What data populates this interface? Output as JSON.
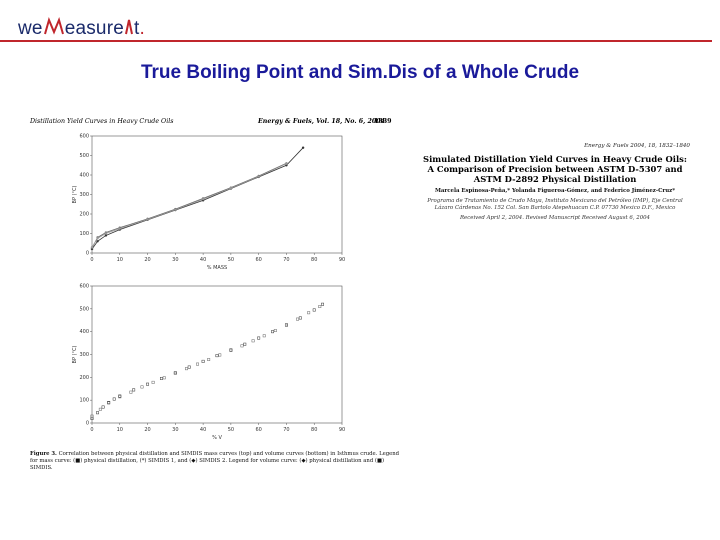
{
  "header": {
    "logo_text": "we Measure It",
    "logo_parts": [
      "we",
      "easure",
      "t"
    ],
    "accent_color": "#c0262c",
    "title_color": "#1a1a9a",
    "title": "True Boiling Point and Sim.Dis of a Whole Crude"
  },
  "paper": {
    "left_running_head": "Distillation Yield Curves in Heavy Crude Oils",
    "right_running_head": "Energy & Fuels, Vol. 18, No. 6, 2004",
    "page_number": "1839",
    "citation": "Energy & Fuels 2004, 18, 1832–1840",
    "article_title": "Simulated Distillation Yield Curves in Heavy Crude Oils: A Comparison of Precision between ASTM D-5307 and ASTM D-2892 Physical Distillation",
    "authors": "Marcela Espinosa-Peña,* Yolanda Figueroa-Gómez, and Federico Jiménez-Cruz*",
    "affiliation": "Programa de Tratamiento de Crudo Maya, Instituto Mexicano del Petróleo (IMP), Eje Central Lázaro Cárdenas No. 152 Col. San Bartolo Atepehuacan C.P. 07730 Mexico D.F., Mexico",
    "received": "Received April 2, 2004. Revised Manuscript Received August 6, 2004",
    "caption_label": "Figure 3.",
    "caption_text": "Correlation between physical distillation and SIMDIS mass curves (top) and volume curves (bottom) in Isthmus crude. Legend for mass curve: (■) physical distillation, (*) SIMDIS 1, and (◆) SIMDIS 2. Legend for volume curve: (◆) physical distillation and (■) SIMDIS."
  },
  "chart_data": [
    {
      "type": "line",
      "title": "",
      "xlabel": "% MASS",
      "ylabel": "BP (°C)",
      "xlim": [
        0,
        90
      ],
      "ylim": [
        0,
        600
      ],
      "x_ticks": [
        "0",
        "10",
        "20",
        "30",
        "40",
        "50",
        "60",
        "70",
        "80",
        "90"
      ],
      "y_ticks": [
        "0",
        "100",
        "200",
        "300",
        "400",
        "500",
        "600"
      ],
      "grid": false,
      "series": [
        {
          "name": "",
          "x": [
            0,
            2,
            5,
            10,
            20,
            30,
            40,
            50,
            60,
            70,
            76
          ],
          "y": [
            20,
            60,
            90,
            120,
            170,
            220,
            270,
            330,
            390,
            450,
            540
          ]
        },
        {
          "name": "",
          "x": [
            0,
            2,
            5,
            10,
            20,
            30,
            40,
            50,
            60,
            70
          ],
          "y": [
            25,
            80,
            105,
            130,
            175,
            225,
            280,
            335,
            395,
            460
          ]
        },
        {
          "name": "",
          "x": [
            0,
            2,
            5,
            10,
            20,
            30,
            40,
            50,
            60,
            70
          ],
          "y": [
            30,
            75,
            100,
            125,
            172,
            222,
            276,
            332,
            392,
            458
          ]
        }
      ]
    },
    {
      "type": "scatter",
      "title": "",
      "xlabel": "% V",
      "ylabel": "BP (°C)",
      "xlim": [
        0,
        90
      ],
      "ylim": [
        0,
        600
      ],
      "x_ticks": [
        "0",
        "10",
        "20",
        "30",
        "40",
        "50",
        "60",
        "70",
        "80",
        "90"
      ],
      "y_ticks": [
        "0",
        "100",
        "200",
        "300",
        "400",
        "500",
        "600"
      ],
      "grid": false,
      "series": [
        {
          "name": "",
          "x": [
            0,
            2,
            4,
            6,
            8,
            10,
            15,
            20,
            25,
            30,
            35,
            40,
            45,
            50,
            55,
            60,
            65,
            70,
            75,
            80,
            83
          ],
          "y": [
            20,
            45,
            70,
            90,
            105,
            118,
            145,
            170,
            195,
            220,
            245,
            270,
            295,
            320,
            345,
            372,
            400,
            430,
            460,
            495,
            520
          ]
        },
        {
          "name": "",
          "x": [
            0,
            3,
            6,
            10,
            14,
            18,
            22,
            26,
            30,
            34,
            38,
            42,
            46,
            50,
            54,
            58,
            62,
            66,
            70,
            74,
            78,
            82
          ],
          "y": [
            30,
            60,
            88,
            115,
            135,
            158,
            178,
            198,
            218,
            238,
            258,
            278,
            298,
            318,
            338,
            360,
            382,
            405,
            428,
            455,
            483,
            510
          ]
        }
      ]
    }
  ]
}
